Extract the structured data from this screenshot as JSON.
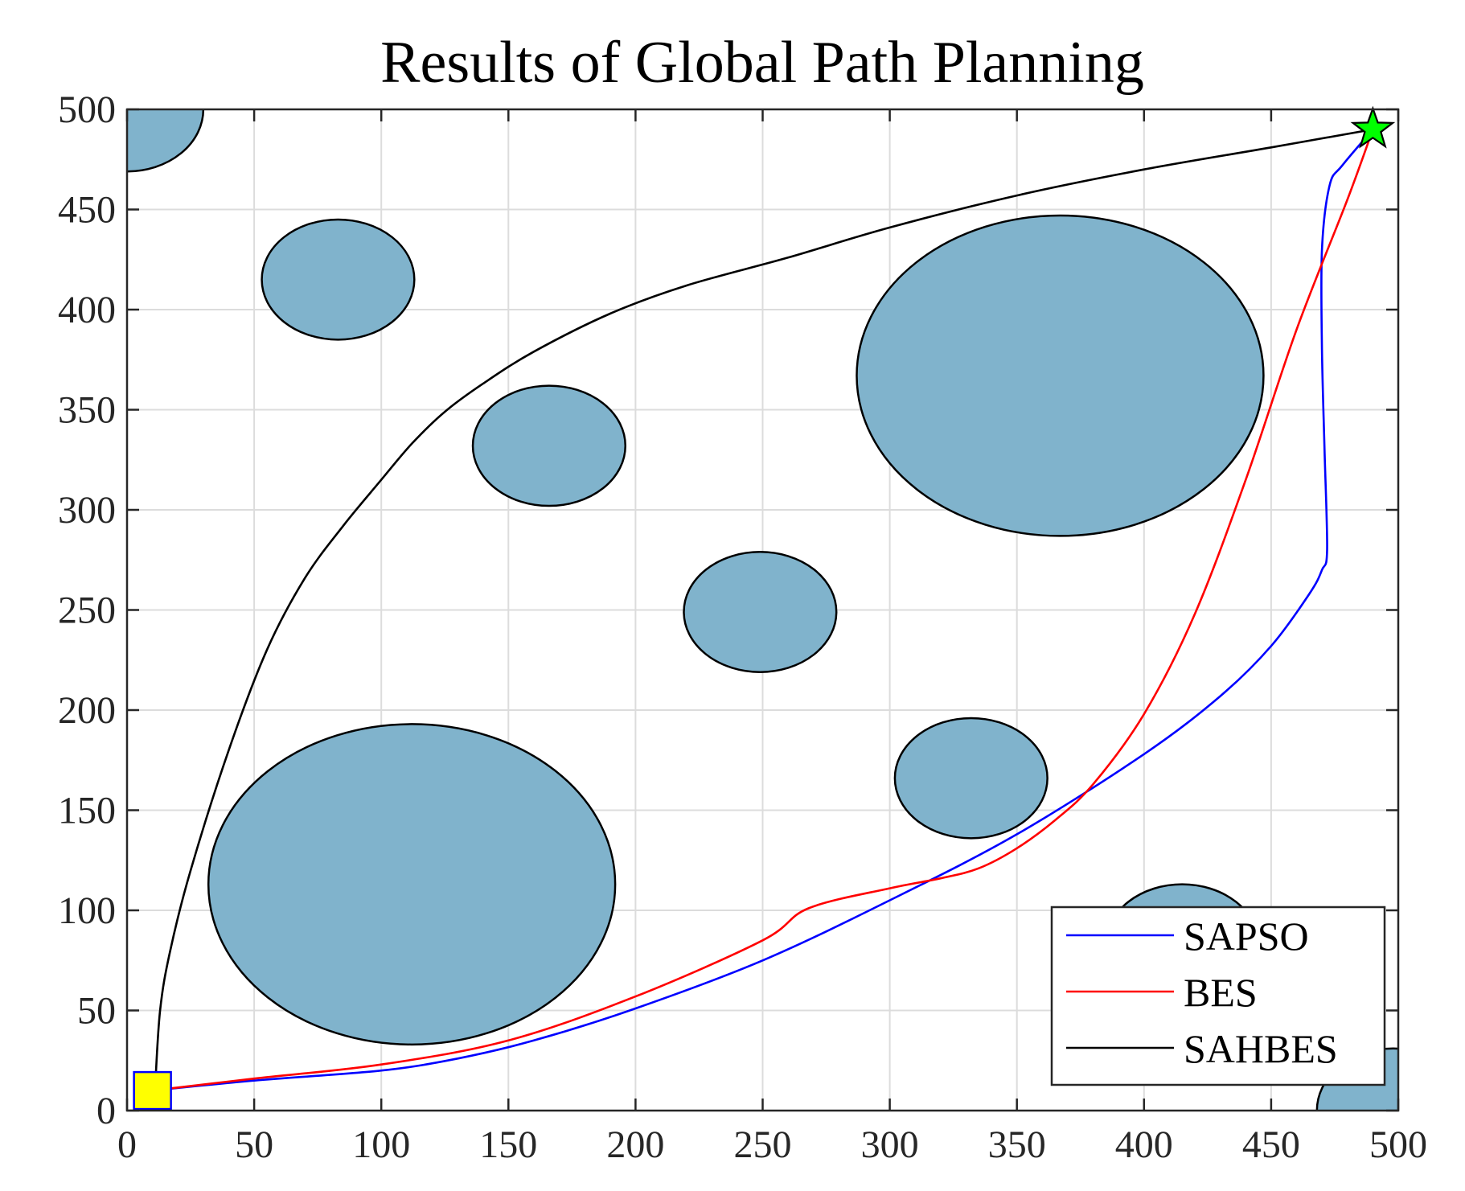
{
  "chart_data": {
    "type": "line",
    "title": "Results of Global Path Planning",
    "xlabel": "",
    "ylabel": "",
    "xlim": [
      0,
      500
    ],
    "ylim": [
      0,
      500
    ],
    "xticks": [
      0,
      50,
      100,
      150,
      200,
      250,
      300,
      350,
      400,
      450,
      500
    ],
    "yticks": [
      0,
      50,
      100,
      150,
      200,
      250,
      300,
      350,
      400,
      450,
      500
    ],
    "grid": true,
    "legend_position": "bottom-right",
    "obstacle_color": "#80b3cc",
    "obstacles": [
      {
        "cx": 0,
        "cy": 500,
        "rx": 30,
        "ry": 31
      },
      {
        "cx": 83,
        "cy": 415,
        "rx": 30,
        "ry": 30
      },
      {
        "cx": 166,
        "cy": 332,
        "rx": 30,
        "ry": 30
      },
      {
        "cx": 249,
        "cy": 249,
        "rx": 30,
        "ry": 30
      },
      {
        "cx": 332,
        "cy": 166,
        "rx": 30,
        "ry": 30
      },
      {
        "cx": 415,
        "cy": 83,
        "rx": 30,
        "ry": 30
      },
      {
        "cx": 498,
        "cy": 0,
        "rx": 30,
        "ry": 31
      },
      {
        "cx": 112,
        "cy": 113,
        "rx": 80,
        "ry": 80
      },
      {
        "cx": 367,
        "cy": 367,
        "rx": 80,
        "ry": 80
      }
    ],
    "start": {
      "x": 10,
      "y": 10,
      "color": "#ffff00"
    },
    "goal": {
      "x": 490,
      "y": 490,
      "color": "#00ff00"
    },
    "series": [
      {
        "name": "SAPSO",
        "color": "#0000ff",
        "points": [
          [
            10,
            10
          ],
          [
            50,
            15
          ],
          [
            100,
            20
          ],
          [
            130,
            26
          ],
          [
            160,
            35
          ],
          [
            200,
            51
          ],
          [
            250,
            75
          ],
          [
            300,
            105
          ],
          [
            350,
            138
          ],
          [
            400,
            178
          ],
          [
            430,
            207
          ],
          [
            450,
            232
          ],
          [
            465,
            258
          ],
          [
            470,
            270
          ],
          [
            472,
            280
          ],
          [
            471,
            330
          ],
          [
            470,
            380
          ],
          [
            470,
            430
          ],
          [
            473,
            462
          ],
          [
            478,
            472
          ],
          [
            490,
            490
          ]
        ]
      },
      {
        "name": "BES",
        "color": "#ff0000",
        "points": [
          [
            10,
            10
          ],
          [
            50,
            16
          ],
          [
            100,
            23
          ],
          [
            150,
            35
          ],
          [
            200,
            57
          ],
          [
            250,
            85
          ],
          [
            268,
            101
          ],
          [
            300,
            111
          ],
          [
            320,
            116
          ],
          [
            335,
            121
          ],
          [
            350,
            131
          ],
          [
            365,
            145
          ],
          [
            380,
            163
          ],
          [
            400,
            198
          ],
          [
            420,
            248
          ],
          [
            440,
            315
          ],
          [
            460,
            390
          ],
          [
            480,
            455
          ],
          [
            490,
            490
          ]
        ]
      },
      {
        "name": "SAHBES",
        "color": "#000000",
        "points": [
          [
            11,
            10
          ],
          [
            13,
            50
          ],
          [
            17,
            80
          ],
          [
            25,
            120
          ],
          [
            40,
            180
          ],
          [
            55,
            230
          ],
          [
            70,
            266
          ],
          [
            85,
            292
          ],
          [
            100,
            315
          ],
          [
            112,
            333
          ],
          [
            125,
            349
          ],
          [
            140,
            363
          ],
          [
            160,
            379
          ],
          [
            190,
            398
          ],
          [
            220,
            412
          ],
          [
            260,
            426
          ],
          [
            300,
            441
          ],
          [
            350,
            457
          ],
          [
            400,
            470
          ],
          [
            450,
            481
          ],
          [
            490,
            490
          ]
        ]
      }
    ]
  }
}
